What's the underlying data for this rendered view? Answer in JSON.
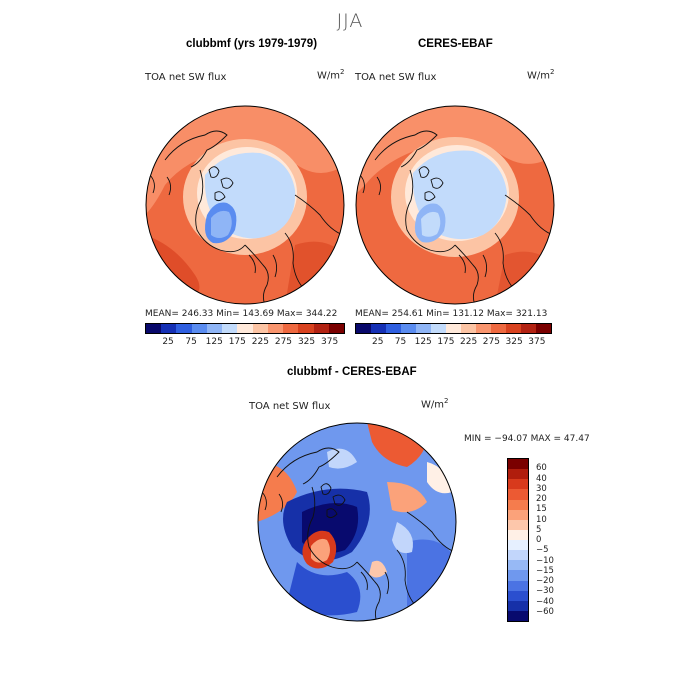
{
  "figure": {
    "season": "JJA",
    "panels": [
      {
        "title": "clubbmf (yrs 1979-1979)",
        "variable": "TOA net SW flux",
        "units_base": "W/m",
        "units_exp": "2",
        "stats": "MEAN= 246.33   Min= 143.69   Max= 344.22"
      },
      {
        "title": "CERES-EBAF",
        "variable": "TOA net SW flux",
        "units_base": "W/m",
        "units_exp": "2",
        "stats": "MEAN= 254.61   Min= 131.12   Max= 321.13"
      }
    ],
    "difference": {
      "title": "clubbmf - CERES-EBAF",
      "variable": "TOA net SW flux",
      "units_base": "W/m",
      "units_exp": "2",
      "stats": "MIN = −94.07  MAX =  47.47"
    }
  },
  "colorbars": {
    "abs_labels": [
      "25",
      "75",
      "125",
      "175",
      "225",
      "275",
      "325",
      "375"
    ],
    "abs_colors": [
      "#08086b",
      "#1530b5",
      "#2f5fe0",
      "#5a8cf0",
      "#8fb5f6",
      "#c2dbfb",
      "#ffe9da",
      "#fcc4a4",
      "#f9956e",
      "#ee6940",
      "#d8421f",
      "#b22212",
      "#7a0000"
    ],
    "diff_labels": [
      "60",
      "40",
      "30",
      "20",
      "15",
      "10",
      "5",
      "0",
      "−5",
      "−10",
      "−15",
      "−20",
      "−30",
      "−40",
      "−60"
    ],
    "diff_colors": [
      "#7a0000",
      "#b01d0d",
      "#d83a1c",
      "#ec5a33",
      "#f57c4d",
      "#fba27a",
      "#fdc7ab",
      "#fff0e6",
      "#e6f0ff",
      "#c2d6fb",
      "#97b9f5",
      "#6f98ee",
      "#4b73e3",
      "#2b4fcf",
      "#1630a8",
      "#080a6e"
    ]
  }
}
